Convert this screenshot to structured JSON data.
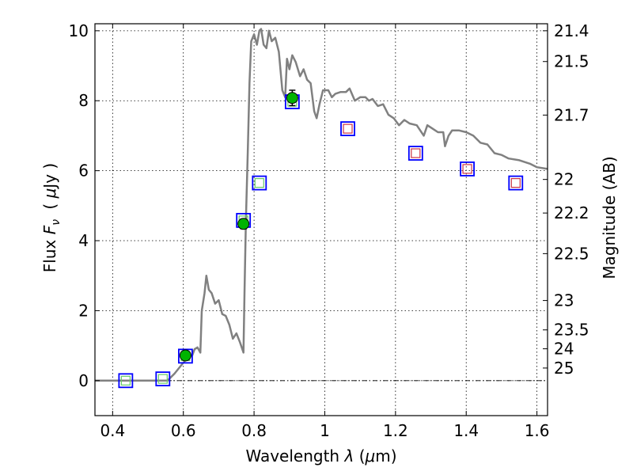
{
  "chart_data": {
    "type": "scatter",
    "xlabel_prefix": "Wavelength",
    "xlabel_symbol": "λ",
    "xlabel_unit_open": "(",
    "xlabel_unit_mu": "μ",
    "xlabel_unit_rest": "m)",
    "ylabel_prefix": "Flux",
    "ylabel_symbol": "F",
    "ylabel_sub": "ν",
    "ylabel_unit_open": "(",
    "ylabel_unit_mu": "μ",
    "ylabel_unit_rest": "Jy )",
    "y2label": "Magnitude (AB)",
    "xlim": [
      0.35,
      1.63
    ],
    "ylim": [
      -1.0,
      10.2
    ],
    "xticks": [
      0.4,
      0.6,
      0.8,
      1.0,
      1.2,
      1.4,
      1.6
    ],
    "xtick_labels": [
      "0.4",
      "0.6",
      "0.8",
      "1",
      "1.2",
      "1.4",
      "1.6"
    ],
    "yticks": [
      0,
      2,
      4,
      6,
      8,
      10
    ],
    "ytick_labels": [
      "0",
      "2",
      "4",
      "6",
      "8",
      "10"
    ],
    "right_ticks": [
      {
        "flux": 10.0,
        "label": "21.4"
      },
      {
        "flux": 9.12,
        "label": "21.5"
      },
      {
        "flux": 7.59,
        "label": "21.7"
      },
      {
        "flux": 5.75,
        "label": "22"
      },
      {
        "flux": 4.79,
        "label": "22.2"
      },
      {
        "flux": 3.63,
        "label": "22.5"
      },
      {
        "flux": 2.29,
        "label": "23"
      },
      {
        "flux": 1.45,
        "label": "23.5"
      },
      {
        "flux": 0.91,
        "label": "24"
      },
      {
        "flux": 0.36,
        "label": "25"
      }
    ],
    "grid": true,
    "zero_line": 0,
    "colors": {
      "model": "#808080",
      "model_square": "#0000ff",
      "inner_green": "#66cc66",
      "inner_red": "#cc3344",
      "observed": "#00b300",
      "errorbar": "#000000"
    },
    "model_spectrum": [
      [
        0.35,
        0.0
      ],
      [
        0.5,
        0.0
      ],
      [
        0.555,
        0.0
      ],
      [
        0.575,
        0.2
      ],
      [
        0.595,
        0.45
      ],
      [
        0.615,
        0.7
      ],
      [
        0.625,
        0.72
      ],
      [
        0.632,
        0.9
      ],
      [
        0.64,
        0.95
      ],
      [
        0.648,
        0.8
      ],
      [
        0.652,
        2.0
      ],
      [
        0.66,
        2.5
      ],
      [
        0.665,
        3.0
      ],
      [
        0.672,
        2.6
      ],
      [
        0.68,
        2.5
      ],
      [
        0.69,
        2.2
      ],
      [
        0.7,
        2.3
      ],
      [
        0.71,
        1.9
      ],
      [
        0.72,
        1.85
      ],
      [
        0.73,
        1.6
      ],
      [
        0.74,
        1.2
      ],
      [
        0.75,
        1.35
      ],
      [
        0.76,
        1.1
      ],
      [
        0.765,
        0.95
      ],
      [
        0.77,
        0.8
      ],
      [
        0.773,
        2.5
      ],
      [
        0.777,
        4.6
      ],
      [
        0.782,
        6.5
      ],
      [
        0.787,
        8.5
      ],
      [
        0.792,
        9.7
      ],
      [
        0.8,
        9.9
      ],
      [
        0.808,
        9.6
      ],
      [
        0.815,
        10.0
      ],
      [
        0.82,
        10.05
      ],
      [
        0.827,
        9.6
      ],
      [
        0.835,
        9.5
      ],
      [
        0.842,
        10.0
      ],
      [
        0.85,
        9.7
      ],
      [
        0.86,
        9.8
      ],
      [
        0.87,
        9.4
      ],
      [
        0.88,
        8.3
      ],
      [
        0.888,
        8.1
      ],
      [
        0.893,
        9.2
      ],
      [
        0.9,
        8.9
      ],
      [
        0.908,
        9.3
      ],
      [
        0.918,
        9.1
      ],
      [
        0.93,
        8.7
      ],
      [
        0.94,
        8.9
      ],
      [
        0.95,
        8.6
      ],
      [
        0.96,
        8.5
      ],
      [
        0.97,
        7.7
      ],
      [
        0.977,
        7.5
      ],
      [
        0.985,
        7.9
      ],
      [
        0.995,
        8.3
      ],
      [
        1.01,
        8.3
      ],
      [
        1.02,
        8.1
      ],
      [
        1.03,
        8.2
      ],
      [
        1.045,
        8.25
      ],
      [
        1.06,
        8.25
      ],
      [
        1.07,
        8.35
      ],
      [
        1.085,
        8.0
      ],
      [
        1.1,
        8.1
      ],
      [
        1.115,
        8.1
      ],
      [
        1.125,
        8.0
      ],
      [
        1.135,
        8.05
      ],
      [
        1.15,
        7.85
      ],
      [
        1.165,
        7.9
      ],
      [
        1.18,
        7.6
      ],
      [
        1.195,
        7.5
      ],
      [
        1.21,
        7.3
      ],
      [
        1.225,
        7.45
      ],
      [
        1.24,
        7.35
      ],
      [
        1.26,
        7.3
      ],
      [
        1.28,
        7.0
      ],
      [
        1.29,
        7.3
      ],
      [
        1.305,
        7.2
      ],
      [
        1.32,
        7.1
      ],
      [
        1.335,
        7.1
      ],
      [
        1.34,
        6.7
      ],
      [
        1.35,
        7.0
      ],
      [
        1.36,
        7.15
      ],
      [
        1.38,
        7.15
      ],
      [
        1.4,
        7.1
      ],
      [
        1.42,
        7.0
      ],
      [
        1.44,
        6.8
      ],
      [
        1.46,
        6.75
      ],
      [
        1.48,
        6.5
      ],
      [
        1.5,
        6.45
      ],
      [
        1.52,
        6.35
      ],
      [
        1.55,
        6.3
      ],
      [
        1.58,
        6.2
      ],
      [
        1.6,
        6.1
      ],
      [
        1.63,
        6.05
      ]
    ],
    "model_photometry": [
      {
        "x": 0.437,
        "y": 0.0,
        "inner": "green"
      },
      {
        "x": 0.542,
        "y": 0.05,
        "inner": "green"
      },
      {
        "x": 0.606,
        "y": 0.7,
        "inner": "green"
      },
      {
        "x": 0.77,
        "y": 4.58,
        "inner": "green"
      },
      {
        "x": 0.815,
        "y": 5.65,
        "inner": "green"
      },
      {
        "x": 0.908,
        "y": 7.97,
        "inner": "green"
      },
      {
        "x": 1.065,
        "y": 7.2,
        "inner": "red"
      },
      {
        "x": 1.257,
        "y": 6.5,
        "inner": "red"
      },
      {
        "x": 1.403,
        "y": 6.05,
        "inner": "red"
      },
      {
        "x": 1.54,
        "y": 5.65,
        "inner": "red"
      }
    ],
    "observed": [
      {
        "x": 0.606,
        "y": 0.72,
        "err": 0.07
      },
      {
        "x": 0.77,
        "y": 4.48,
        "err": 0.14
      },
      {
        "x": 0.908,
        "y": 8.08,
        "err": 0.22
      }
    ]
  }
}
